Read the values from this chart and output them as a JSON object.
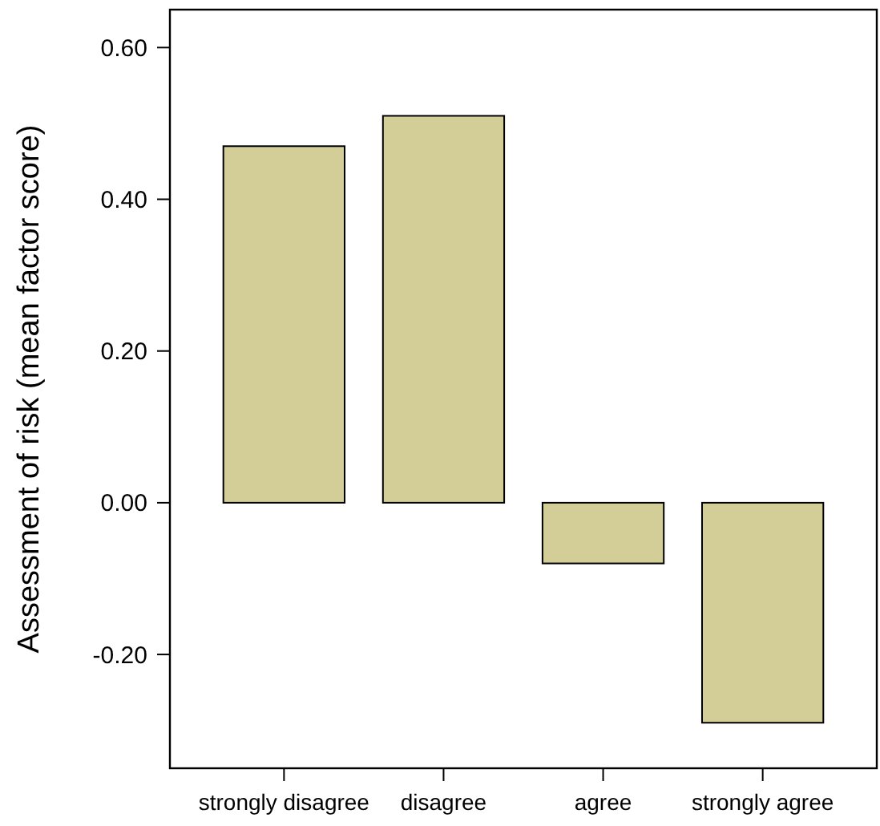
{
  "chart_data": {
    "type": "bar",
    "ylabel": "Assessment of risk (mean factor score)",
    "categories": [
      "strongly disagree",
      "disagree",
      "agree",
      "strongly agree"
    ],
    "values": [
      0.47,
      0.51,
      -0.08,
      -0.29
    ],
    "color": "#d3ce98",
    "ylim": [
      -0.35,
      0.65
    ],
    "yticks": [
      {
        "value": -0.2,
        "label": "-0.20"
      },
      {
        "value": 0,
        "label": "0.00"
      },
      {
        "value": 0.2,
        "label": "0.20"
      },
      {
        "value": 0.4,
        "label": "0.40"
      },
      {
        "value": 0.6,
        "label": "0.60"
      }
    ],
    "grid": false
  }
}
